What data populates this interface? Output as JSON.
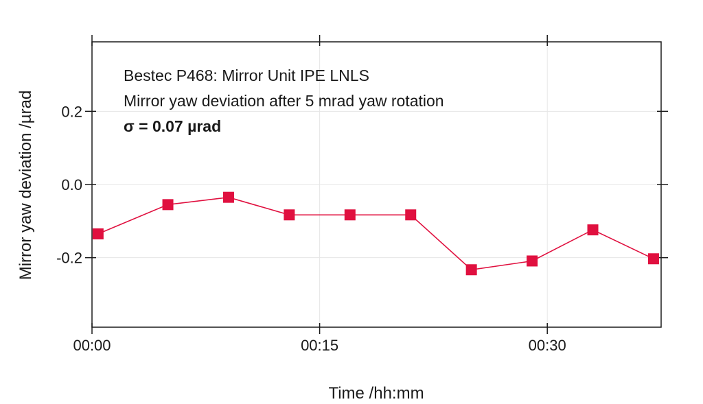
{
  "chart_data": {
    "type": "line",
    "xlabel": "Time /hh:mm",
    "ylabel": "Mirror yaw deviation /µrad",
    "annotations": [
      "Bestec P468: Mirror Unit IPE LNLS",
      "Mirror yaw deviation after 5 mrad yaw rotation",
      "σ = 0.07 µrad"
    ],
    "x_unit": "minutes",
    "xlim": [
      0,
      37.5
    ],
    "ylim": [
      -0.39,
      0.39
    ],
    "x_ticks": [
      {
        "value": 0,
        "label": "00:00"
      },
      {
        "value": 15,
        "label": "00:15"
      },
      {
        "value": 30,
        "label": "00:30"
      }
    ],
    "y_ticks": [
      {
        "value": 0.2,
        "label": "0.2"
      },
      {
        "value": 0.0,
        "label": "0.0"
      },
      {
        "value": -0.2,
        "label": "-0.2"
      }
    ],
    "grid": true,
    "series": [
      {
        "color": "#e0103f",
        "marker": "square",
        "x": [
          0.4,
          5.0,
          9.0,
          13.0,
          17.0,
          21.0,
          25.0,
          29.0,
          33.0,
          37.0
        ],
        "y": [
          -0.135,
          -0.055,
          -0.035,
          -0.083,
          -0.083,
          -0.083,
          -0.233,
          -0.209,
          -0.124,
          -0.203
        ]
      }
    ]
  }
}
